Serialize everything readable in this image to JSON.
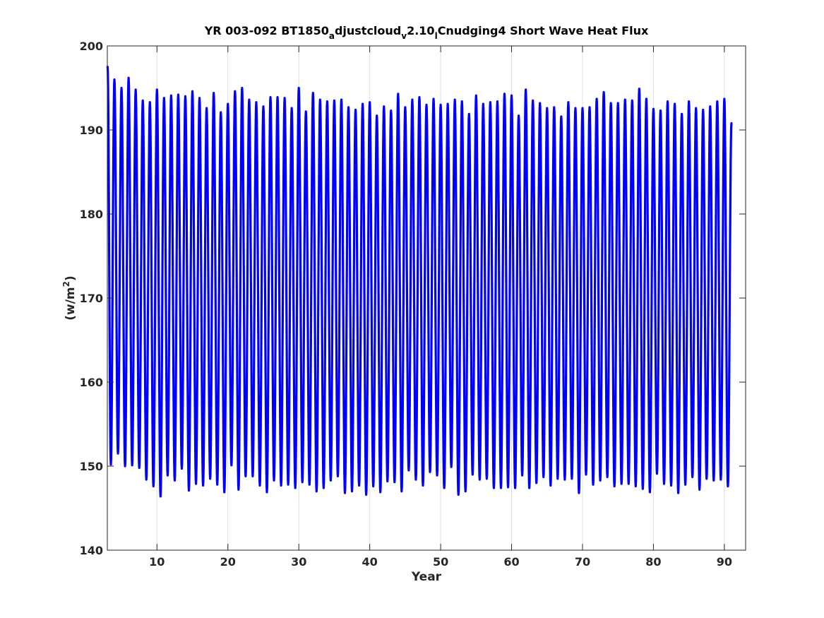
{
  "chart_data": {
    "type": "line",
    "title": {
      "parts": [
        "YR 003-092 BT1850",
        "a",
        "djustcloud",
        "v",
        "2.10",
        "l",
        "Cnudging4 Short Wave Heat Flux"
      ],
      "subscript_parts": [
        1,
        3,
        5
      ]
    },
    "xlabel": "Year",
    "ylabel": {
      "prefix": "(w/m",
      "superscript": "2",
      "suffix": ")"
    },
    "xlim": [
      3,
      93
    ],
    "ylim": [
      140,
      200
    ],
    "xticks": [
      10,
      20,
      30,
      40,
      50,
      60,
      70,
      80,
      90
    ],
    "yticks": [
      140,
      150,
      160,
      170,
      180,
      190,
      200
    ],
    "grid": {
      "x": true,
      "y": false
    },
    "series": [
      {
        "color": "#0000ff",
        "start_year": 3.04,
        "start_value": 197.5,
        "end_year": 91.0,
        "end_value": 190.8,
        "annual_maxima": [
          {
            "x": 4.0,
            "y": 196.0
          },
          {
            "x": 5.0,
            "y": 195.0
          },
          {
            "x": 6.0,
            "y": 196.2
          },
          {
            "x": 7.0,
            "y": 194.8
          },
          {
            "x": 8.0,
            "y": 193.5
          },
          {
            "x": 9.0,
            "y": 193.3
          },
          {
            "x": 10.0,
            "y": 194.8
          },
          {
            "x": 11.0,
            "y": 193.8
          },
          {
            "x": 12.0,
            "y": 194.1
          },
          {
            "x": 13.0,
            "y": 194.2
          },
          {
            "x": 14.0,
            "y": 194.0
          },
          {
            "x": 15.0,
            "y": 194.6
          },
          {
            "x": 16.0,
            "y": 193.8
          },
          {
            "x": 17.0,
            "y": 192.6
          },
          {
            "x": 18.0,
            "y": 194.4
          },
          {
            "x": 19.0,
            "y": 192.1
          },
          {
            "x": 20.0,
            "y": 193.1
          },
          {
            "x": 21.0,
            "y": 194.6
          },
          {
            "x": 22.0,
            "y": 195.0
          },
          {
            "x": 23.0,
            "y": 193.6
          },
          {
            "x": 24.0,
            "y": 193.3
          },
          {
            "x": 25.0,
            "y": 192.8
          },
          {
            "x": 26.0,
            "y": 193.9
          },
          {
            "x": 27.0,
            "y": 193.9
          },
          {
            "x": 28.0,
            "y": 193.8
          },
          {
            "x": 29.0,
            "y": 192.6
          },
          {
            "x": 30.0,
            "y": 195.0
          },
          {
            "x": 31.0,
            "y": 192.2
          },
          {
            "x": 32.0,
            "y": 194.4
          },
          {
            "x": 33.0,
            "y": 193.6
          },
          {
            "x": 34.0,
            "y": 193.4
          },
          {
            "x": 35.0,
            "y": 193.5
          },
          {
            "x": 36.0,
            "y": 193.6
          },
          {
            "x": 37.0,
            "y": 192.7
          },
          {
            "x": 38.0,
            "y": 192.4
          },
          {
            "x": 39.0,
            "y": 193.1
          },
          {
            "x": 40.0,
            "y": 193.3
          },
          {
            "x": 41.0,
            "y": 191.7
          },
          {
            "x": 42.0,
            "y": 192.8
          },
          {
            "x": 43.0,
            "y": 192.3
          },
          {
            "x": 44.0,
            "y": 194.3
          },
          {
            "x": 45.0,
            "y": 192.7
          },
          {
            "x": 46.0,
            "y": 193.6
          },
          {
            "x": 47.0,
            "y": 193.9
          },
          {
            "x": 48.0,
            "y": 193.0
          },
          {
            "x": 49.0,
            "y": 193.7
          },
          {
            "x": 50.0,
            "y": 193.0
          },
          {
            "x": 51.0,
            "y": 193.1
          },
          {
            "x": 52.0,
            "y": 193.6
          },
          {
            "x": 53.0,
            "y": 193.4
          },
          {
            "x": 54.0,
            "y": 191.9
          },
          {
            "x": 55.0,
            "y": 194.1
          },
          {
            "x": 56.0,
            "y": 193.1
          },
          {
            "x": 57.0,
            "y": 193.3
          },
          {
            "x": 58.0,
            "y": 193.4
          },
          {
            "x": 59.0,
            "y": 194.3
          },
          {
            "x": 60.0,
            "y": 194.1
          },
          {
            "x": 61.0,
            "y": 191.7
          },
          {
            "x": 62.0,
            "y": 194.8
          },
          {
            "x": 63.0,
            "y": 193.5
          },
          {
            "x": 64.0,
            "y": 193.2
          },
          {
            "x": 65.0,
            "y": 192.6
          },
          {
            "x": 66.0,
            "y": 192.7
          },
          {
            "x": 67.0,
            "y": 191.6
          },
          {
            "x": 68.0,
            "y": 193.3
          },
          {
            "x": 69.0,
            "y": 192.6
          },
          {
            "x": 70.0,
            "y": 192.6
          },
          {
            "x": 71.0,
            "y": 192.7
          },
          {
            "x": 72.0,
            "y": 193.7
          },
          {
            "x": 73.0,
            "y": 194.5
          },
          {
            "x": 74.0,
            "y": 193.2
          },
          {
            "x": 75.0,
            "y": 193.2
          },
          {
            "x": 76.0,
            "y": 193.6
          },
          {
            "x": 77.0,
            "y": 193.5
          },
          {
            "x": 78.0,
            "y": 194.9
          },
          {
            "x": 79.0,
            "y": 193.7
          },
          {
            "x": 80.0,
            "y": 192.5
          },
          {
            "x": 81.0,
            "y": 192.3
          },
          {
            "x": 82.0,
            "y": 193.4
          },
          {
            "x": 83.0,
            "y": 193.1
          },
          {
            "x": 84.0,
            "y": 191.9
          },
          {
            "x": 85.0,
            "y": 193.4
          },
          {
            "x": 86.0,
            "y": 192.6
          },
          {
            "x": 87.0,
            "y": 192.4
          },
          {
            "x": 88.0,
            "y": 192.8
          },
          {
            "x": 89.0,
            "y": 193.4
          },
          {
            "x": 90.0,
            "y": 193.7
          }
        ],
        "annual_minima": [
          {
            "x": 3.5,
            "y": 150.2
          },
          {
            "x": 4.5,
            "y": 151.5
          },
          {
            "x": 5.5,
            "y": 150.0
          },
          {
            "x": 6.5,
            "y": 150.1
          },
          {
            "x": 7.5,
            "y": 149.8
          },
          {
            "x": 8.5,
            "y": 148.4
          },
          {
            "x": 9.5,
            "y": 147.6
          },
          {
            "x": 10.5,
            "y": 146.4
          },
          {
            "x": 11.5,
            "y": 148.9
          },
          {
            "x": 12.5,
            "y": 148.3
          },
          {
            "x": 13.5,
            "y": 149.7
          },
          {
            "x": 14.5,
            "y": 147.1
          },
          {
            "x": 15.5,
            "y": 147.9
          },
          {
            "x": 16.5,
            "y": 147.7
          },
          {
            "x": 17.5,
            "y": 148.5
          },
          {
            "x": 18.5,
            "y": 147.8
          },
          {
            "x": 19.5,
            "y": 146.9
          },
          {
            "x": 20.5,
            "y": 150.1
          },
          {
            "x": 21.5,
            "y": 147.2
          },
          {
            "x": 22.5,
            "y": 148.8
          },
          {
            "x": 23.5,
            "y": 148.8
          },
          {
            "x": 24.5,
            "y": 147.7
          },
          {
            "x": 25.5,
            "y": 146.9
          },
          {
            "x": 26.5,
            "y": 148.3
          },
          {
            "x": 27.5,
            "y": 147.7
          },
          {
            "x": 28.5,
            "y": 147.8
          },
          {
            "x": 29.5,
            "y": 147.4
          },
          {
            "x": 30.5,
            "y": 148.1
          },
          {
            "x": 31.5,
            "y": 147.8
          },
          {
            "x": 32.5,
            "y": 147.0
          },
          {
            "x": 33.5,
            "y": 147.4
          },
          {
            "x": 34.5,
            "y": 148.3
          },
          {
            "x": 35.5,
            "y": 148.8
          },
          {
            "x": 36.5,
            "y": 146.8
          },
          {
            "x": 37.5,
            "y": 147.0
          },
          {
            "x": 38.5,
            "y": 147.7
          },
          {
            "x": 39.5,
            "y": 146.6
          },
          {
            "x": 40.5,
            "y": 147.6
          },
          {
            "x": 41.5,
            "y": 146.9
          },
          {
            "x": 42.5,
            "y": 148.2
          },
          {
            "x": 43.5,
            "y": 148.1
          },
          {
            "x": 44.5,
            "y": 147.0
          },
          {
            "x": 45.5,
            "y": 149.5
          },
          {
            "x": 46.5,
            "y": 148.4
          },
          {
            "x": 47.5,
            "y": 147.7
          },
          {
            "x": 48.5,
            "y": 149.3
          },
          {
            "x": 49.5,
            "y": 148.9
          },
          {
            "x": 50.5,
            "y": 147.4
          },
          {
            "x": 51.5,
            "y": 149.9
          },
          {
            "x": 52.5,
            "y": 146.6
          },
          {
            "x": 53.5,
            "y": 147.0
          },
          {
            "x": 54.5,
            "y": 149.0
          },
          {
            "x": 55.5,
            "y": 148.4
          },
          {
            "x": 56.5,
            "y": 148.5
          },
          {
            "x": 57.5,
            "y": 147.4
          },
          {
            "x": 58.5,
            "y": 147.4
          },
          {
            "x": 59.5,
            "y": 147.5
          },
          {
            "x": 60.5,
            "y": 147.4
          },
          {
            "x": 61.5,
            "y": 148.9
          },
          {
            "x": 62.5,
            "y": 147.4
          },
          {
            "x": 63.5,
            "y": 148.0
          },
          {
            "x": 64.5,
            "y": 148.7
          },
          {
            "x": 65.5,
            "y": 147.7
          },
          {
            "x": 66.5,
            "y": 148.5
          },
          {
            "x": 67.5,
            "y": 148.4
          },
          {
            "x": 68.5,
            "y": 148.5
          },
          {
            "x": 69.5,
            "y": 146.8
          },
          {
            "x": 70.5,
            "y": 149.0
          },
          {
            "x": 71.5,
            "y": 147.8
          },
          {
            "x": 72.5,
            "y": 148.3
          },
          {
            "x": 73.5,
            "y": 148.7
          },
          {
            "x": 74.5,
            "y": 147.6
          },
          {
            "x": 75.5,
            "y": 147.9
          },
          {
            "x": 76.5,
            "y": 147.9
          },
          {
            "x": 77.5,
            "y": 147.6
          },
          {
            "x": 78.5,
            "y": 147.3
          },
          {
            "x": 79.5,
            "y": 146.9
          },
          {
            "x": 80.5,
            "y": 149.1
          },
          {
            "x": 81.5,
            "y": 147.9
          },
          {
            "x": 82.5,
            "y": 147.7
          },
          {
            "x": 83.5,
            "y": 146.8
          },
          {
            "x": 84.5,
            "y": 147.8
          },
          {
            "x": 85.5,
            "y": 148.7
          },
          {
            "x": 86.5,
            "y": 147.2
          },
          {
            "x": 87.5,
            "y": 148.5
          },
          {
            "x": 88.5,
            "y": 148.3
          },
          {
            "x": 89.5,
            "y": 148.4
          },
          {
            "x": 90.5,
            "y": 147.6
          }
        ]
      }
    ]
  }
}
